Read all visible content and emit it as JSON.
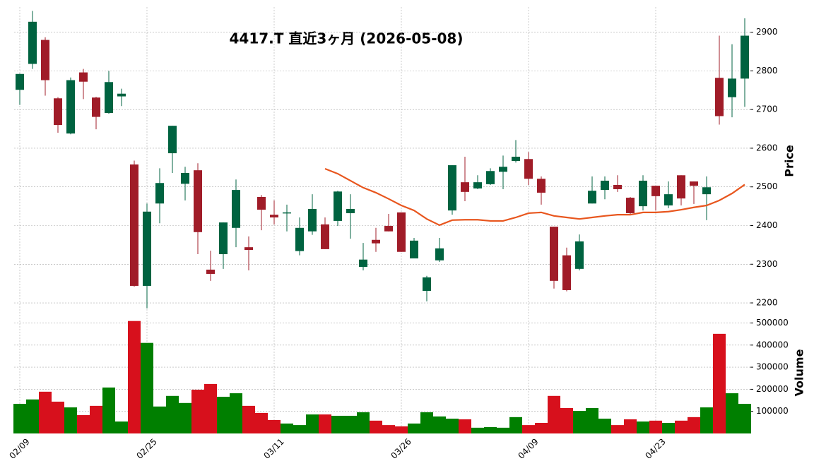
{
  "chart_data": {
    "type": "candlestick",
    "title": "4417.T  直近3ヶ月  (2026-05-08)",
    "ylabel": "Price",
    "categories": [
      "02/09",
      null,
      null,
      null,
      null,
      null,
      null,
      null,
      null,
      null,
      "02/25",
      null,
      null,
      null,
      null,
      null,
      null,
      null,
      null,
      null,
      "03/11",
      null,
      null,
      null,
      null,
      null,
      null,
      null,
      null,
      null,
      "03/26",
      null,
      null,
      null,
      null,
      null,
      null,
      null,
      null,
      null,
      "04/09",
      null,
      null,
      null,
      null,
      null,
      null,
      null,
      null,
      null,
      "04/23",
      null,
      null,
      null,
      null,
      null,
      null,
      null
    ],
    "open": [
      2751,
      2818,
      2880,
      2729,
      2638,
      2796,
      2731,
      2691,
      2734,
      2558,
      2244,
      2457,
      2587,
      2508,
      2543,
      2286,
      2326,
      2394,
      2344,
      2474,
      2428,
      2432,
      2334,
      2385,
      2403,
      2412,
      2432,
      2293,
      2363,
      2399,
      2434,
      2315,
      2231,
      2310,
      2439,
      2512,
      2496,
      2507,
      2539,
      2567,
      2572,
      2521,
      2397,
      2323,
      2288,
      2457,
      2492,
      2505,
      2472,
      2450,
      2503,
      2452,
      2530,
      2514,
      2481,
      2782,
      2732,
      2780
    ],
    "high": [
      2793,
      2955,
      2887,
      2732,
      2783,
      2805,
      2733,
      2800,
      2754,
      2568,
      2457,
      2548,
      2658,
      2552,
      2561,
      2335,
      2408,
      2519,
      2372,
      2479,
      2465,
      2454,
      2421,
      2481,
      2421,
      2490,
      2481,
      2355,
      2394,
      2430,
      2434,
      2368,
      2270,
      2368,
      2556,
      2578,
      2530,
      2548,
      2581,
      2621,
      2590,
      2527,
      2397,
      2343,
      2377,
      2527,
      2527,
      2530,
      2474,
      2530,
      2503,
      2514,
      2530,
      2514,
      2527,
      2891,
      2869,
      2936
    ],
    "low": [
      2712,
      2805,
      2736,
      2640,
      2636,
      2727,
      2649,
      2689,
      2709,
      2242,
      2186,
      2406,
      2536,
      2465,
      2326,
      2257,
      2288,
      2344,
      2284,
      2388,
      2403,
      2385,
      2323,
      2376,
      2339,
      2399,
      2366,
      2284,
      2332,
      2385,
      2332,
      2315,
      2204,
      2306,
      2428,
      2463,
      2494,
      2505,
      2494,
      2563,
      2505,
      2454,
      2237,
      2230,
      2284,
      2457,
      2468,
      2487,
      2430,
      2439,
      2439,
      2445,
      2452,
      2456,
      2414,
      2661,
      2680,
      2707
    ],
    "close": [
      2792,
      2927,
      2776,
      2660,
      2776,
      2772,
      2681,
      2771,
      2741,
      2244,
      2436,
      2510,
      2658,
      2536,
      2383,
      2275,
      2408,
      2492,
      2337,
      2441,
      2421,
      2434,
      2394,
      2443,
      2339,
      2488,
      2443,
      2312,
      2354,
      2385,
      2332,
      2361,
      2266,
      2341,
      2556,
      2487,
      2512,
      2541,
      2552,
      2578,
      2521,
      2485,
      2257,
      2233,
      2359,
      2490,
      2516,
      2494,
      2432,
      2516,
      2476,
      2481,
      2470,
      2503,
      2499,
      2683,
      2780,
      2891
    ],
    "up_color": "#006340",
    "down_color": "#a01c28",
    "ma": {
      "color": "#e8561e",
      "values": [
        null,
        null,
        null,
        null,
        null,
        null,
        null,
        null,
        null,
        null,
        null,
        null,
        null,
        null,
        null,
        null,
        null,
        null,
        null,
        null,
        null,
        null,
        null,
        null,
        2547,
        2534,
        2516,
        2498,
        2485,
        2469,
        2452,
        2439,
        2417,
        2401,
        2414,
        2415,
        2415,
        2412,
        2412,
        2421,
        2432,
        2434,
        2425,
        2421,
        2417,
        2421,
        2425,
        2428,
        2428,
        2434,
        2434,
        2436,
        2441,
        2447,
        2452,
        2465,
        2483,
        2506
      ]
    },
    "ylim": [
      2180,
      2965
    ],
    "yticks": [
      2200,
      2300,
      2400,
      2500,
      2600,
      2700,
      2800,
      2900
    ],
    "grid": true,
    "volume": {
      "ylabel": "Volume",
      "up_color": "#007f00",
      "down_color": "#d7101c",
      "values": [
        134000,
        154000,
        189000,
        144000,
        118000,
        83000,
        125000,
        208000,
        54000,
        509000,
        410000,
        122000,
        170000,
        138000,
        198000,
        224000,
        166000,
        182000,
        125000,
        93000,
        61000,
        45000,
        38000,
        86000,
        86000,
        80000,
        80000,
        96000,
        58000,
        38000,
        32000,
        45000,
        96000,
        77000,
        67000,
        64000,
        26000,
        29000,
        26000,
        74000,
        38000,
        48000,
        170000,
        115000,
        102000,
        115000,
        67000,
        38000,
        64000,
        54000,
        58000,
        48000,
        58000,
        74000,
        118000,
        451000,
        182000,
        134000
      ],
      "ylim": [
        0,
        540000
      ],
      "yticks": [
        100000,
        200000,
        300000,
        400000,
        500000
      ]
    }
  }
}
